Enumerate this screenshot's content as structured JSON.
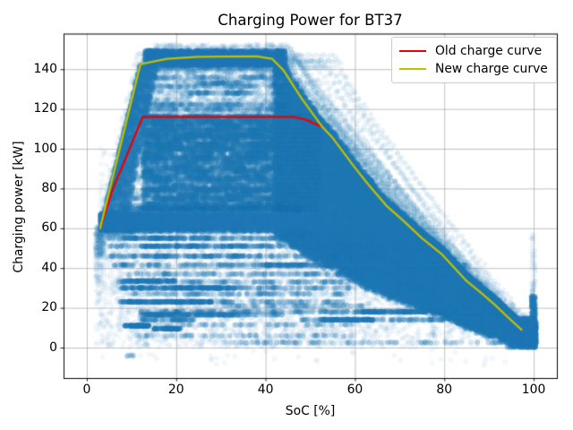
{
  "chart_data": {
    "type": "scatter+line",
    "title": "Charging Power for BT37",
    "xlabel": "SoC [%]",
    "ylabel": "Charging power [kW]",
    "xlim": [
      -5.2,
      105.2
    ],
    "ylim": [
      -15.3,
      157.9
    ],
    "xticks": [
      0,
      20,
      40,
      60,
      80,
      100
    ],
    "yticks": [
      0,
      20,
      40,
      60,
      80,
      100,
      120,
      140
    ],
    "grid": true,
    "grid_color": "#b0b0b0",
    "legend_position": "upper right",
    "series": [
      {
        "name": "Old charge curve",
        "color": "#ee0000",
        "points": [
          [
            3,
            60
          ],
          [
            5.7,
            79
          ],
          [
            12.5,
            116
          ],
          [
            46.5,
            116
          ],
          [
            49.2,
            114.5
          ],
          [
            52.3,
            111.3
          ]
        ]
      },
      {
        "name": "New charge curve",
        "color": "#bfbf00",
        "points": [
          [
            3,
            60
          ],
          [
            12,
            142.5
          ],
          [
            18,
            145.2
          ],
          [
            25,
            146.2
          ],
          [
            38,
            146.5
          ],
          [
            41.5,
            145.2
          ],
          [
            44,
            139.5
          ],
          [
            48,
            125.5
          ],
          [
            52.7,
            111
          ],
          [
            55,
            105.5
          ],
          [
            60,
            90.5
          ],
          [
            63,
            82
          ],
          [
            67,
            71.5
          ],
          [
            71,
            63.5
          ],
          [
            75,
            55
          ],
          [
            79.3,
            47.3
          ],
          [
            85,
            33.5
          ],
          [
            88,
            28
          ],
          [
            91.3,
            21.6
          ],
          [
            94,
            15.8
          ],
          [
            97.3,
            9
          ]
        ]
      }
    ],
    "scatter": {
      "description": "charging session measurements, power vs state-of-charge",
      "color": "#1f77b4",
      "marker_radius": 3.0,
      "seed": 11,
      "sessions": {
        "n": 130,
        "alpha": 0.09,
        "start_soc": [
          2,
          10
        ],
        "start_power": [
          56,
          62
        ],
        "ramp_rate": [
          7.5,
          11.5
        ],
        "end_soc": [
          94,
          100
        ],
        "end_power": [
          1,
          12
        ],
        "types": [
          {
            "w": 0.3,
            "p": [
              139,
              149.5
            ],
            "knee": [
              36,
              48
            ]
          },
          {
            "w": 0.09,
            "p": [
              140,
              148
            ],
            "knee": [
              48,
              57
            ]
          },
          {
            "w": 0.21,
            "p": [
              74,
              138
            ],
            "knee": [
              40,
              56
            ]
          },
          {
            "w": 0.2,
            "p": [
              60,
              72
            ],
            "knee": [
              45,
              75
            ]
          },
          {
            "w": 0.2,
            "p": [
              62,
              80
            ],
            "knee": [
              35,
              60
            ],
            "slow": true
          }
        ]
      },
      "wedge": {
        "n": 32000,
        "a": 0.3,
        "s0": 42,
        "s1": 100.4,
        "upper_off": 3.5,
        "lower_frac": 0.4,
        "lower_off": -2
      },
      "mid_rows": [
        {
          "y0": 70,
          "y1": 116.5,
          "step": 2.3,
          "x0": 12.5,
          "x1": 52,
          "n_per": 1200,
          "a": 0.17,
          "dmin": 0.55,
          "dvar": 0.55
        },
        {
          "y0": 117.5,
          "y1": 140.5,
          "step": 2.3,
          "x0": 13,
          "x1": 45,
          "n_per": 560,
          "a": 0.11,
          "dmin": 0.18,
          "dvar": 0.55
        }
      ],
      "band_alpha": 0.17,
      "bands": [
        [
          55,
          4,
          50,
          380
        ],
        [
          51,
          5,
          65,
          410
        ],
        [
          46,
          4,
          68,
          360
        ],
        [
          41.5,
          6,
          98,
          670
        ],
        [
          37,
          9,
          62,
          290
        ],
        [
          33,
          7,
          62,
          310
        ],
        [
          30,
          22,
          60,
          240
        ],
        [
          27,
          10,
          58,
          230
        ],
        [
          23,
          18,
          58,
          200
        ],
        [
          21,
          30,
          62,
          170
        ],
        [
          18,
          12,
          44,
          260
        ],
        [
          16.5,
          12,
          44,
          260
        ],
        [
          18,
          44,
          93,
          380
        ],
        [
          14,
          12,
          24,
          140
        ],
        [
          14,
          48,
          80,
          260
        ],
        [
          11.5,
          14,
          60,
          140
        ],
        [
          6,
          9,
          60,
          130
        ],
        [
          2.5,
          30,
          97,
          230
        ],
        [
          115,
          14,
          46,
          200
        ],
        [
          113,
          13,
          40,
          240
        ],
        [
          106,
          14,
          42,
          290
        ],
        [
          100,
          15,
          44,
          240
        ],
        [
          90,
          13,
          45,
          260
        ],
        [
          85,
          14,
          40,
          220
        ],
        [
          80,
          12,
          45,
          240
        ],
        [
          75,
          10,
          46,
          230
        ],
        [
          70,
          8,
          48,
          290
        ],
        [
          128,
          23,
          37,
          140
        ],
        [
          133,
          25,
          35,
          120
        ]
      ],
      "bands2_alpha": 0.26,
      "bands2": [
        [
          30,
          7.5,
          33,
          330
        ],
        [
          23,
          7.5,
          28,
          300
        ],
        [
          11,
          8.5,
          14,
          150
        ],
        [
          9.5,
          15,
          21,
          130
        ],
        [
          33.5,
          8,
          20,
          150
        ],
        [
          41.5,
          40,
          83,
          330
        ],
        [
          18,
          60,
          76,
          180
        ],
        [
          18,
          83,
          90,
          110
        ],
        [
          16.5,
          13,
          33,
          180
        ],
        [
          14,
          52,
          64,
          140
        ],
        [
          55,
          10,
          28,
          130
        ],
        [
          51,
          12,
          40,
          150
        ],
        [
          46,
          10,
          40,
          130
        ]
      ],
      "clusters": [
        {
          "x0": 2,
          "x1": 100,
          "y0": 0,
          "y1": 60,
          "n": 2600,
          "a": 0.06,
          "clip": true
        },
        {
          "x0": 2,
          "x1": 60,
          "y0": 0,
          "y1": 60,
          "n": 1000,
          "a": 0.05,
          "clip": true
        },
        {
          "x0": 5,
          "x1": 98,
          "y0": 1,
          "y1": 58,
          "n": 350,
          "a": 0.08,
          "clip": true
        },
        {
          "x0": 8,
          "x1": 48,
          "y0": 67.5,
          "y1": 72,
          "n": 700,
          "a": 0.08,
          "clip": false
        },
        {
          "x0": 3,
          "x1": 97,
          "y0": -9,
          "y1": -1,
          "n": 34,
          "a": 0.06,
          "clip": false
        },
        {
          "x0": 9,
          "x1": 10.5,
          "y0": -4.5,
          "y1": -3.5,
          "n": 12,
          "a": 0.12,
          "clip": false
        },
        {
          "x0": 3,
          "x1": 52,
          "y0": 58.5,
          "y1": 67.5,
          "n": 3400,
          "a": 0.26,
          "clip": false,
          "bias": 1.15
        },
        {
          "x0": 4,
          "x1": 50,
          "y0": 57.2,
          "y1": 58.8,
          "n": 220,
          "a": 0.1,
          "clip": false
        },
        {
          "x0": 13,
          "x1": 44.5,
          "y0": 141.5,
          "y1": 149.5,
          "n": 2600,
          "a": 0.24,
          "clip": false
        },
        {
          "x0": 15,
          "x1": 46,
          "y0": 149.5,
          "y1": 152.5,
          "n": 200,
          "a": 0.07,
          "clip": false
        },
        {
          "x0": 2.8,
          "x1": 6,
          "y0": 62,
          "y1": 100,
          "n": 60,
          "a": 0.05,
          "clip": false
        },
        {
          "x0": 99.5,
          "x1": 100.4,
          "y0": 0,
          "y1": 26,
          "n": 380,
          "a": 0.2,
          "clip": false
        },
        {
          "x0": 99.5,
          "x1": 100.4,
          "y0": 26,
          "y1": 58,
          "n": 55,
          "a": 0.06,
          "clip": false
        },
        {
          "x0": 94,
          "x1": 100.3,
          "y0": 0,
          "y1": 15,
          "n": 1100,
          "a": 0.22,
          "clip": false,
          "bias": 0.7
        },
        {
          "x0": 2,
          "x1": 4,
          "y0": 46,
          "y1": 61,
          "n": 140,
          "a": 0.09,
          "clip": false
        },
        {
          "x0": 1.8,
          "x1": 3.2,
          "y0": 30,
          "y1": 58,
          "n": 70,
          "a": 0.06,
          "clip": false
        }
      ],
      "ramp": {
        "n": 2600,
        "a": 0.2,
        "y0": 60,
        "y1": 142,
        "slope": 9.17,
        "width": 5.5,
        "narrow": 0.02
      }
    }
  }
}
